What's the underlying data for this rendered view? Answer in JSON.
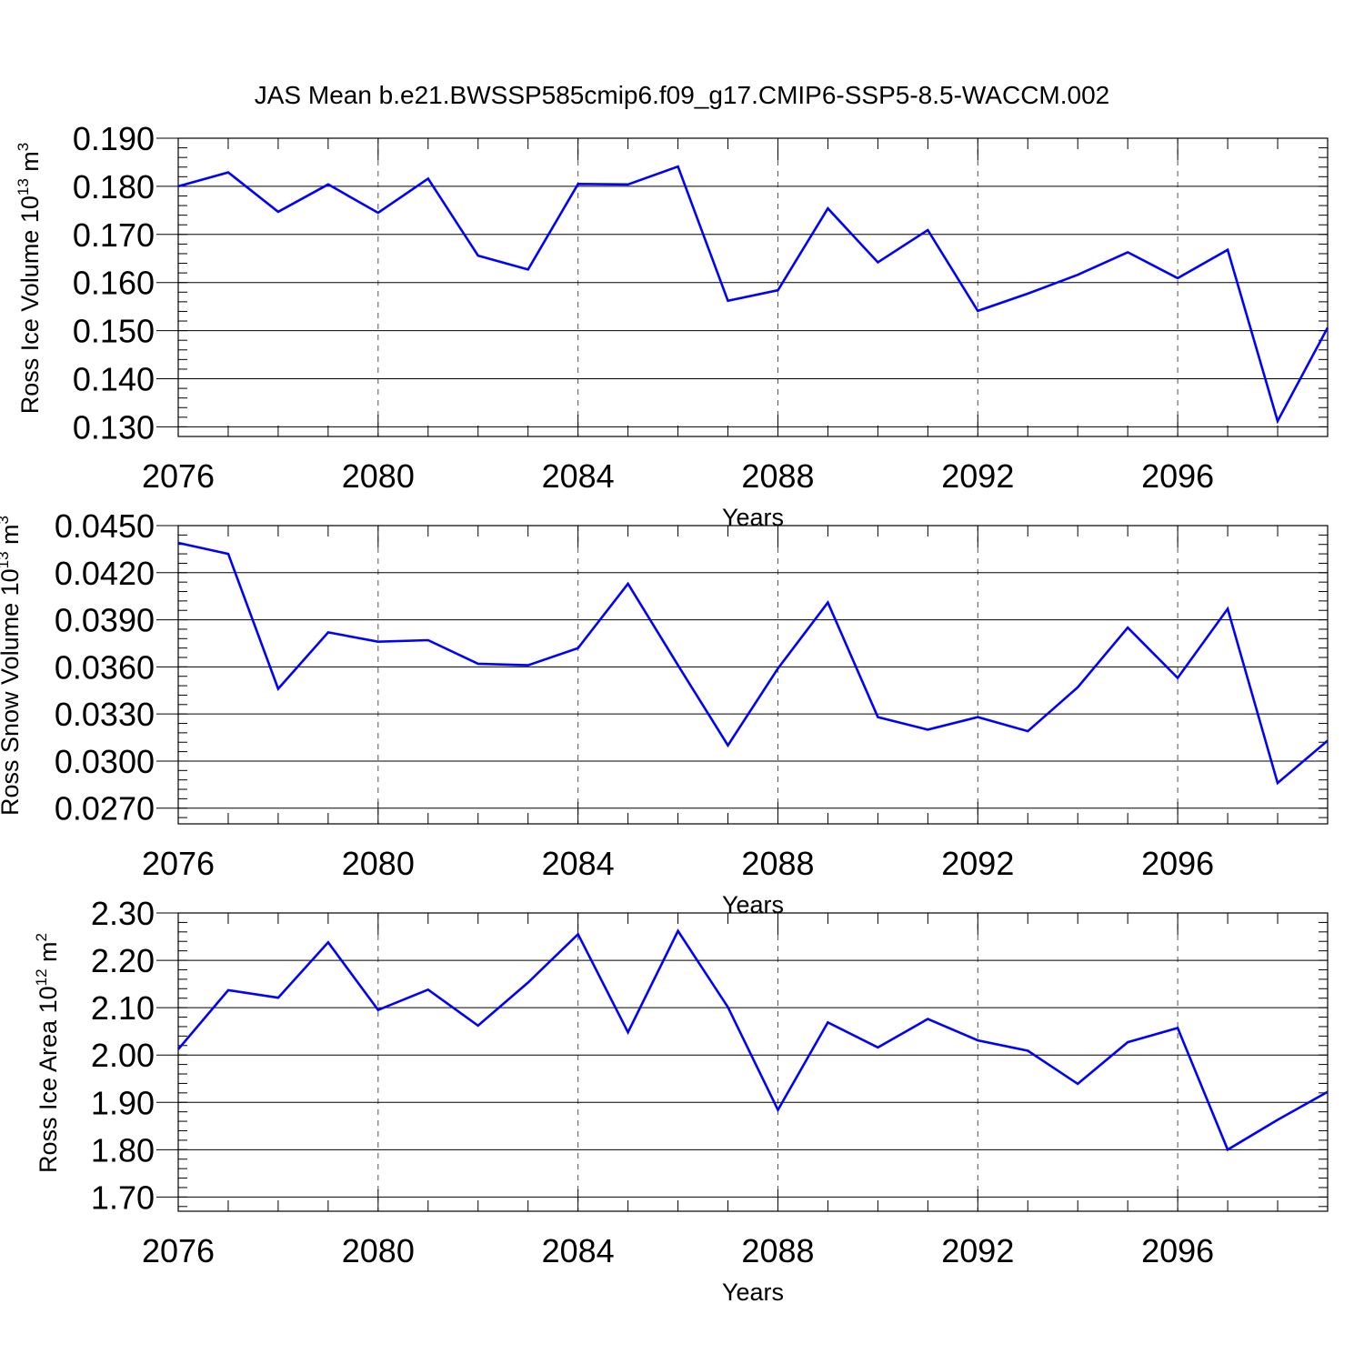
{
  "title": "JAS Mean b.e21.BWSSP585cmip6.f09_g17.CMIP6-SSP5-8.5-WACCM.002",
  "line_color": "#0000ff",
  "chart_data": [
    {
      "type": "line",
      "xlabel": "Years",
      "ylabel": {
        "text": "Ross Ice Volume 10",
        "exp": "13",
        "unit": " m",
        "unit_exp": "3"
      },
      "xlim": [
        2076,
        2099
      ],
      "ylim": [
        0.128,
        0.19
      ],
      "x_ticks": [
        2076,
        2080,
        2084,
        2088,
        2092,
        2096
      ],
      "x_tick_labels": [
        "2076",
        "2080",
        "2084",
        "2088",
        "2092",
        "2096"
      ],
      "y_ticks": [
        0.13,
        0.14,
        0.15,
        0.16,
        0.17,
        0.18,
        0.19
      ],
      "y_tick_labels": [
        "0.130",
        "0.140",
        "0.150",
        "0.160",
        "0.170",
        "0.180",
        "0.190"
      ],
      "grid": "vertical-dashed",
      "x": [
        2076,
        2077,
        2078,
        2079,
        2080,
        2081,
        2082,
        2083,
        2084,
        2085,
        2086,
        2087,
        2088,
        2089,
        2090,
        2091,
        2092,
        2093,
        2094,
        2095,
        2096,
        2097,
        2098,
        2099
      ],
      "values": [
        0.18,
        0.1829,
        0.1747,
        0.1804,
        0.1745,
        0.1816,
        0.1656,
        0.1627,
        0.1805,
        0.1804,
        0.1841,
        0.1562,
        0.1584,
        0.1754,
        0.1642,
        0.1709,
        0.1541,
        0.1577,
        0.1616,
        0.1663,
        0.1609,
        0.1668,
        0.1312,
        0.1506
      ]
    },
    {
      "type": "line",
      "xlabel": "Years",
      "ylabel": {
        "text": "Ross Snow Volume 10",
        "exp": "13",
        "unit": " m",
        "unit_exp": "3"
      },
      "xlim": [
        2076,
        2099
      ],
      "ylim": [
        0.026,
        0.045
      ],
      "x_ticks": [
        2076,
        2080,
        2084,
        2088,
        2092,
        2096
      ],
      "x_tick_labels": [
        "2076",
        "2080",
        "2084",
        "2088",
        "2092",
        "2096"
      ],
      "y_ticks": [
        0.027,
        0.03,
        0.033,
        0.036,
        0.039,
        0.042,
        0.045
      ],
      "y_tick_labels": [
        "0.0270",
        "0.0300",
        "0.0330",
        "0.0360",
        "0.0390",
        "0.0420",
        "0.0450"
      ],
      "grid": "vertical-dashed",
      "x": [
        2076,
        2077,
        2078,
        2079,
        2080,
        2081,
        2082,
        2083,
        2084,
        2085,
        2086,
        2087,
        2088,
        2089,
        2090,
        2091,
        2092,
        2093,
        2094,
        2095,
        2096,
        2097,
        2098,
        2099
      ],
      "values": [
        0.0439,
        0.0432,
        0.0346,
        0.0382,
        0.0376,
        0.0377,
        0.0362,
        0.0361,
        0.0372,
        0.0413,
        0.0361,
        0.031,
        0.0359,
        0.0401,
        0.0328,
        0.032,
        0.0328,
        0.0319,
        0.0347,
        0.0385,
        0.0353,
        0.0397,
        0.0286,
        0.0313
      ]
    },
    {
      "type": "line",
      "xlabel": "Years",
      "ylabel": {
        "text": "Ross Ice Area 10",
        "exp": "12",
        "unit": " m",
        "unit_exp": "2"
      },
      "xlim": [
        2076,
        2099
      ],
      "ylim": [
        1.67,
        2.3
      ],
      "x_ticks": [
        2076,
        2080,
        2084,
        2088,
        2092,
        2096
      ],
      "x_tick_labels": [
        "2076",
        "2080",
        "2084",
        "2088",
        "2092",
        "2096"
      ],
      "y_ticks": [
        1.7,
        1.8,
        1.9,
        2.0,
        2.1,
        2.2,
        2.3
      ],
      "y_tick_labels": [
        "1.70",
        "1.80",
        "1.90",
        "2.00",
        "2.10",
        "2.20",
        "2.30"
      ],
      "grid": "vertical-dashed",
      "x": [
        2076,
        2077,
        2078,
        2079,
        2080,
        2081,
        2082,
        2083,
        2084,
        2085,
        2086,
        2087,
        2088,
        2089,
        2090,
        2091,
        2092,
        2093,
        2094,
        2095,
        2096,
        2097,
        2098,
        2099
      ],
      "values": [
        2.012,
        2.137,
        2.121,
        2.238,
        2.095,
        2.138,
        2.062,
        2.153,
        2.255,
        2.048,
        2.262,
        2.101,
        1.884,
        2.069,
        2.016,
        2.076,
        2.031,
        2.009,
        1.939,
        2.027,
        2.057,
        1.8,
        1.863,
        1.922
      ]
    }
  ]
}
